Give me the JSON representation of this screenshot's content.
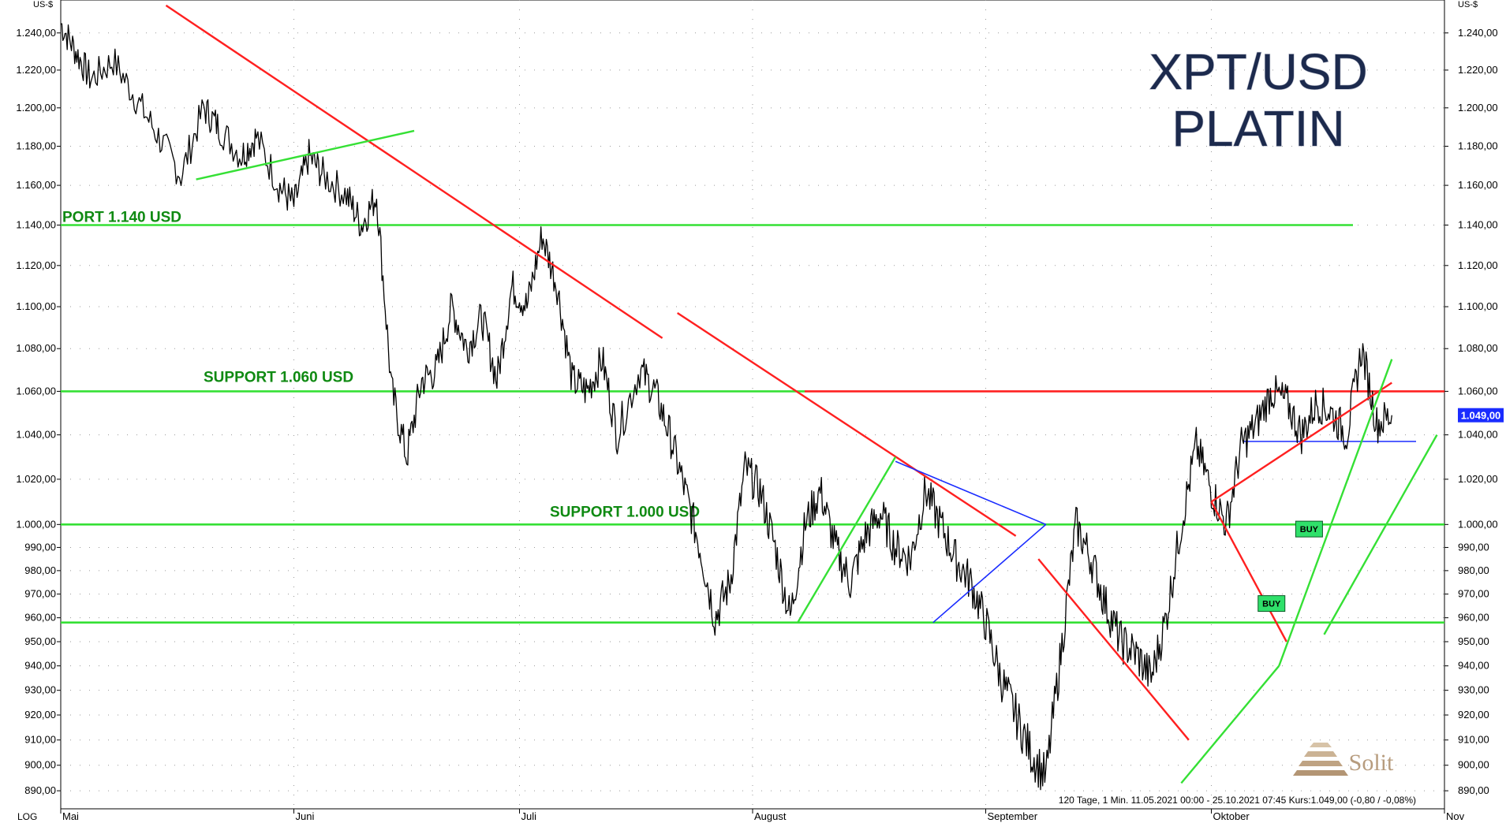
{
  "chart_data": {
    "type": "line",
    "title": "XPT/USD",
    "subtitle": "PLATIN",
    "ylabel": "US-$",
    "scale_label": "LOG",
    "ylim": [
      883,
      1258
    ],
    "y_ticks": [
      {
        "value": 1240,
        "label": "1.240,00"
      },
      {
        "value": 1220,
        "label": "1.220,00"
      },
      {
        "value": 1200,
        "label": "1.200,00"
      },
      {
        "value": 1180,
        "label": "1.180,00"
      },
      {
        "value": 1160,
        "label": "1.160,00"
      },
      {
        "value": 1140,
        "label": "1.140,00"
      },
      {
        "value": 1120,
        "label": "1.120,00"
      },
      {
        "value": 1100,
        "label": "1.100,00"
      },
      {
        "value": 1080,
        "label": "1.080,00"
      },
      {
        "value": 1060,
        "label": "1.060,00"
      },
      {
        "value": 1040,
        "label": "1.040,00"
      },
      {
        "value": 1020,
        "label": "1.020,00"
      },
      {
        "value": 1000,
        "label": "1.000,00"
      },
      {
        "value": 990,
        "label": "990,00"
      },
      {
        "value": 980,
        "label": "980,00"
      },
      {
        "value": 970,
        "label": "970,00"
      },
      {
        "value": 960,
        "label": "960,00"
      },
      {
        "value": 950,
        "label": "950,00"
      },
      {
        "value": 940,
        "label": "940,00"
      },
      {
        "value": 930,
        "label": "930,00"
      },
      {
        "value": 920,
        "label": "920,00"
      },
      {
        "value": 910,
        "label": "910,00"
      },
      {
        "value": 900,
        "label": "900,00"
      },
      {
        "value": 890,
        "label": "890,00"
      }
    ],
    "x_range": [
      "2021-05-01",
      "2021-11-01"
    ],
    "x_ticks": [
      {
        "date": "2021-05-01",
        "label": "Mai"
      },
      {
        "date": "2021-06-01",
        "label": "Juni"
      },
      {
        "date": "2021-07-01",
        "label": "Juli"
      },
      {
        "date": "2021-08-01",
        "label": "August"
      },
      {
        "date": "2021-09-01",
        "label": "September"
      },
      {
        "date": "2021-10-01",
        "label": "Oktober"
      },
      {
        "date": "2021-11-01",
        "label": "Nov"
      }
    ],
    "grid": true,
    "series": [
      {
        "x": [
          "2021-05-01",
          "2021-05-03",
          "2021-05-05",
          "2021-05-08",
          "2021-05-11",
          "2021-05-14",
          "2021-05-17",
          "2021-05-20",
          "2021-05-22",
          "2021-05-25",
          "2021-05-27",
          "2021-05-30",
          "2021-06-01",
          "2021-06-03",
          "2021-06-05",
          "2021-06-08",
          "2021-06-10",
          "2021-06-12",
          "2021-06-14",
          "2021-06-16",
          "2021-06-18",
          "2021-06-20",
          "2021-06-22",
          "2021-06-24",
          "2021-06-26",
          "2021-06-28",
          "2021-06-30",
          "2021-07-02",
          "2021-07-04",
          "2021-07-06",
          "2021-07-08",
          "2021-07-10",
          "2021-07-12",
          "2021-07-14",
          "2021-07-17",
          "2021-07-19",
          "2021-07-21",
          "2021-07-23",
          "2021-07-25",
          "2021-07-27",
          "2021-07-29",
          "2021-07-31",
          "2021-08-02",
          "2021-08-04",
          "2021-08-06",
          "2021-08-08",
          "2021-08-10",
          "2021-08-12",
          "2021-08-14",
          "2021-08-16",
          "2021-08-18",
          "2021-08-20",
          "2021-08-22",
          "2021-08-24",
          "2021-08-26",
          "2021-08-28",
          "2021-08-30",
          "2021-09-01",
          "2021-09-03",
          "2021-09-05",
          "2021-09-07",
          "2021-09-09",
          "2021-09-11",
          "2021-09-13",
          "2021-09-15",
          "2021-09-17",
          "2021-09-19",
          "2021-09-21",
          "2021-09-23",
          "2021-09-25",
          "2021-09-27",
          "2021-09-29",
          "2021-10-01",
          "2021-10-03",
          "2021-10-05",
          "2021-10-07",
          "2021-10-09",
          "2021-10-11",
          "2021-10-13",
          "2021-10-15",
          "2021-10-17",
          "2021-10-19",
          "2021-10-21",
          "2021-10-23",
          "2021-10-25"
        ],
        "y": [
          1245,
          1230,
          1215,
          1225,
          1205,
          1185,
          1165,
          1200,
          1190,
          1175,
          1185,
          1160,
          1150,
          1175,
          1165,
          1155,
          1140,
          1155,
          1060,
          1030,
          1065,
          1070,
          1100,
          1080,
          1095,
          1065,
          1110,
          1100,
          1135,
          1110,
          1065,
          1060,
          1075,
          1040,
          1070,
          1060,
          1040,
          1015,
          990,
          960,
          975,
          1025,
          1015,
          990,
          960,
          1000,
          1015,
          990,
          975,
          995,
          1005,
          990,
          985,
          1015,
          1000,
          985,
          975,
          958,
          935,
          920,
          905,
          895,
          945,
          1000,
          985,
          965,
          950,
          945,
          935,
          960,
          1000,
          1035,
          1015,
          1000,
          1035,
          1045,
          1060,
          1055,
          1040,
          1055,
          1050,
          1040,
          1080,
          1045,
          1049
        ]
      }
    ],
    "horizontal_lines": [
      {
        "value": 1140,
        "color": "#35e035",
        "label": "PORT 1.140 USD"
      },
      {
        "value": 1060,
        "color": "#35e035",
        "label": "SUPPORT 1.060 USD"
      },
      {
        "value": 1000,
        "color": "#35e035",
        "label": "SUPPORT 1.000 USD"
      },
      {
        "value": 958,
        "color": "#35e035",
        "label": ""
      },
      {
        "value": 1060,
        "color": "#ff2020",
        "label": ""
      },
      {
        "value": 1037,
        "color": "#1a2cff",
        "label": ""
      }
    ],
    "trend_lines": [
      {
        "color": "#ff2020",
        "from": [
          "2021-05-15",
          1255
        ],
        "to": [
          "2021-07-20",
          1085
        ]
      },
      {
        "color": "#ff2020",
        "from": [
          "2021-07-22",
          1097
        ],
        "to": [
          "2021-09-05",
          995
        ]
      },
      {
        "color": "#ff2020",
        "from": [
          "2021-09-08",
          985
        ],
        "to": [
          "2021-09-28",
          910
        ]
      },
      {
        "color": "#ff2020",
        "from": [
          "2021-10-01",
          1010
        ],
        "to": [
          "2021-10-11",
          950
        ]
      },
      {
        "color": "#ff2020",
        "from": [
          "2021-10-01",
          1010
        ],
        "to": [
          "2021-10-25",
          1064
        ]
      },
      {
        "color": "#35e035",
        "from": [
          "2021-05-19",
          1163
        ],
        "to": [
          "2021-06-17",
          1188
        ]
      },
      {
        "color": "#35e035",
        "from": [
          "2021-08-07",
          958
        ],
        "to": [
          "2021-08-20",
          1030
        ]
      },
      {
        "color": "#35e035",
        "from": [
          "2021-09-27",
          893
        ],
        "to": [
          "2021-10-10",
          940
        ]
      },
      {
        "color": "#35e035",
        "from": [
          "2021-10-10",
          940
        ],
        "to": [
          "2021-10-25",
          1075
        ]
      },
      {
        "color": "#35e035",
        "from": [
          "2021-10-16",
          953
        ],
        "to": [
          "2021-10-31",
          1040
        ]
      },
      {
        "color": "#1a2cff",
        "from": [
          "2021-08-20",
          1028
        ],
        "to": [
          "2021-09-09",
          1000
        ]
      },
      {
        "color": "#1a2cff",
        "from": [
          "2021-08-25",
          958
        ],
        "to": [
          "2021-09-09",
          1000
        ]
      }
    ],
    "buy_markers": [
      {
        "date": "2021-10-09",
        "value": 966,
        "label": "BUY"
      },
      {
        "date": "2021-10-14",
        "value": 998,
        "label": "BUY"
      }
    ],
    "last_price": {
      "value": 1049,
      "label": "1.049,00"
    },
    "footer": "120 Tage, 1 Min. 11.05.2021 00:00 - 25.10.2021 07:45  Kurs:1.049,00 (-0,80 / -0,08%)",
    "watermark": "Solit"
  }
}
